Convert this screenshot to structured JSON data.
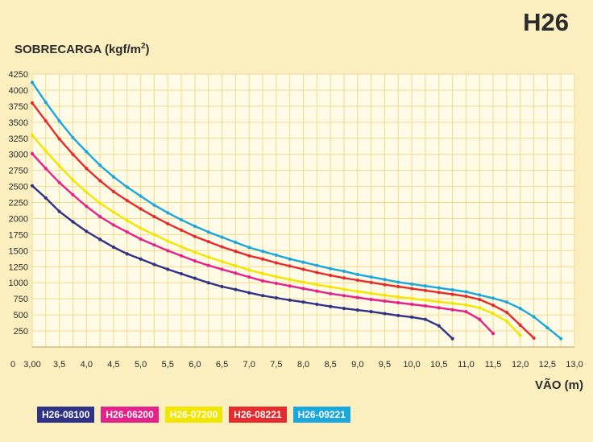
{
  "chart_data": {
    "type": "line",
    "title": "H26",
    "ylabel_main": "SOBRECARGA (kgf/m",
    "ylabel_sup": "2",
    "ylabel_tail": ")",
    "xlabel": "VÃO (m)",
    "xlim": [
      3.0,
      13.0
    ],
    "ylim": [
      0,
      4250
    ],
    "x_ticks": [
      "3,00",
      "3,5",
      "4,0",
      "4,5",
      "5,0",
      "5,5",
      "6,0",
      "6,5",
      "7,0",
      "7,5",
      "8,0",
      "8,5",
      "9,0",
      "9,5",
      "10,0",
      "10,5",
      "11,0",
      "11,5",
      "12,0",
      "12,5",
      "13,0"
    ],
    "x_tick_values": [
      3.0,
      3.5,
      4.0,
      4.5,
      5.0,
      5.5,
      6.0,
      6.5,
      7.0,
      7.5,
      8.0,
      8.5,
      9.0,
      9.5,
      10.0,
      10.5,
      11.0,
      11.5,
      12.0,
      12.5,
      13.0
    ],
    "y_ticks": [
      250,
      500,
      750,
      1000,
      1250,
      1500,
      1750,
      2000,
      2250,
      2500,
      2750,
      3000,
      3250,
      3500,
      3750,
      4000,
      4250
    ],
    "x0_label": "0",
    "grid": true,
    "legend_position": "bottom-left",
    "series": [
      {
        "name": "H26-08100",
        "color": "#2f3287",
        "x": [
          3.0,
          3.25,
          3.5,
          3.75,
          4.0,
          4.25,
          4.5,
          4.75,
          5.0,
          5.25,
          5.5,
          5.75,
          6.0,
          6.25,
          6.5,
          6.75,
          7.0,
          7.25,
          7.5,
          7.75,
          8.0,
          8.25,
          8.5,
          8.75,
          9.0,
          9.25,
          9.5,
          9.75,
          10.0,
          10.25,
          10.5,
          10.75
        ],
        "y": [
          2510,
          2320,
          2110,
          1950,
          1800,
          1675,
          1555,
          1450,
          1370,
          1285,
          1210,
          1140,
          1070,
          1000,
          940,
          895,
          845,
          800,
          765,
          730,
          700,
          665,
          630,
          600,
          575,
          550,
          520,
          490,
          465,
          430,
          330,
          130
        ]
      },
      {
        "name": "H26-06200",
        "color": "#e5218a",
        "x": [
          3.0,
          3.25,
          3.5,
          3.75,
          4.0,
          4.25,
          4.5,
          4.75,
          5.0,
          5.25,
          5.5,
          5.75,
          6.0,
          6.25,
          6.5,
          6.75,
          7.0,
          7.25,
          7.5,
          7.75,
          8.0,
          8.25,
          8.5,
          8.75,
          9.0,
          9.25,
          9.5,
          9.75,
          10.0,
          10.25,
          10.5,
          10.75,
          11.0,
          11.25,
          11.5
        ],
        "y": [
          3010,
          2780,
          2560,
          2370,
          2190,
          2030,
          1900,
          1790,
          1680,
          1590,
          1500,
          1420,
          1340,
          1270,
          1210,
          1150,
          1090,
          1030,
          990,
          950,
          910,
          870,
          830,
          800,
          770,
          740,
          715,
          690,
          665,
          640,
          610,
          580,
          550,
          430,
          210
        ]
      },
      {
        "name": "H26-07200",
        "color": "#f2e600",
        "x": [
          3.0,
          3.25,
          3.5,
          3.75,
          4.0,
          4.25,
          4.5,
          4.75,
          5.0,
          5.25,
          5.5,
          5.75,
          6.0,
          6.25,
          6.5,
          6.75,
          7.0,
          7.25,
          7.5,
          7.75,
          8.0,
          8.25,
          8.5,
          8.75,
          9.0,
          9.25,
          9.5,
          9.75,
          10.0,
          10.25,
          10.5,
          10.75,
          11.0,
          11.25,
          11.5,
          11.75,
          12.0
        ],
        "y": [
          3300,
          3050,
          2820,
          2600,
          2410,
          2240,
          2100,
          1970,
          1850,
          1750,
          1650,
          1560,
          1475,
          1400,
          1330,
          1265,
          1200,
          1145,
          1095,
          1050,
          1010,
          970,
          935,
          900,
          865,
          835,
          805,
          780,
          755,
          730,
          705,
          680,
          655,
          610,
          520,
          400,
          180
        ]
      },
      {
        "name": "H26-08221",
        "color": "#e62b2e",
        "x": [
          3.0,
          3.25,
          3.5,
          3.75,
          4.0,
          4.25,
          4.5,
          4.75,
          5.0,
          5.25,
          5.5,
          5.75,
          6.0,
          6.25,
          6.5,
          6.75,
          7.0,
          7.25,
          7.5,
          7.75,
          8.0,
          8.25,
          8.5,
          8.75,
          9.0,
          9.25,
          9.5,
          9.75,
          10.0,
          10.25,
          10.5,
          10.75,
          11.0,
          11.25,
          11.5,
          11.75,
          12.0,
          12.25
        ],
        "y": [
          3800,
          3520,
          3240,
          3000,
          2780,
          2590,
          2420,
          2280,
          2150,
          2030,
          1920,
          1820,
          1720,
          1640,
          1560,
          1490,
          1420,
          1370,
          1310,
          1260,
          1210,
          1160,
          1115,
          1075,
          1040,
          1005,
          970,
          940,
          910,
          880,
          850,
          820,
          790,
          740,
          650,
          540,
          340,
          140
        ]
      },
      {
        "name": "H26-09221",
        "color": "#1aa7dd",
        "x": [
          3.0,
          3.25,
          3.5,
          3.75,
          4.0,
          4.25,
          4.5,
          4.75,
          5.0,
          5.25,
          5.5,
          5.75,
          6.0,
          6.25,
          6.5,
          6.75,
          7.0,
          7.25,
          7.5,
          7.75,
          8.0,
          8.25,
          8.5,
          8.75,
          9.0,
          9.25,
          9.5,
          9.75,
          10.0,
          10.25,
          10.5,
          10.75,
          11.0,
          11.25,
          11.5,
          11.75,
          12.0,
          12.25,
          12.5,
          12.75
        ],
        "y": [
          4120,
          3810,
          3520,
          3260,
          3040,
          2830,
          2650,
          2490,
          2350,
          2210,
          2090,
          1980,
          1880,
          1790,
          1710,
          1630,
          1550,
          1490,
          1430,
          1370,
          1320,
          1270,
          1220,
          1180,
          1130,
          1090,
          1050,
          1010,
          980,
          950,
          920,
          890,
          860,
          810,
          760,
          700,
          600,
          470,
          300,
          130
        ]
      }
    ]
  }
}
